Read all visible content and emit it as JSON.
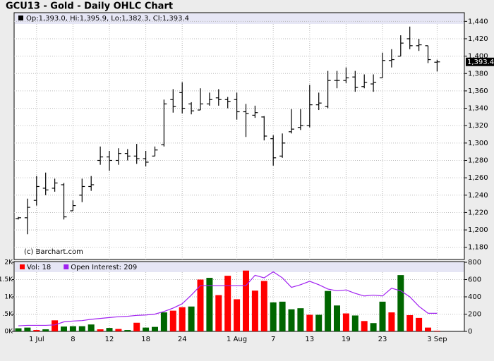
{
  "chart_data": [
    {
      "type": "ohlc",
      "title": "GCU13 - Gold - Daily OHLC Chart",
      "info": "Op:1,393.0, Hi:1,395.9, Lo:1,382.3, Cl:1,393.4",
      "credit": "(c) Barchart.com",
      "categories": [
        null,
        null,
        "1 Jul",
        null,
        null,
        null,
        "8",
        null,
        null,
        null,
        "12",
        null,
        null,
        null,
        "18",
        null,
        null,
        null,
        "24",
        null,
        null,
        null,
        null,
        null,
        "1 Aug",
        null,
        null,
        null,
        "7",
        null,
        null,
        null,
        "13",
        null,
        null,
        null,
        "19",
        null,
        null,
        null,
        "23",
        null,
        null,
        null,
        null,
        null,
        "3 Sep"
      ],
      "open": [
        1213,
        1214,
        1234,
        1248,
        1248,
        1252,
        1222,
        1240,
        1250,
        1280,
        1284,
        1280,
        1288,
        1285,
        1282,
        1285,
        1298,
        1350,
        1358,
        1345,
        1338,
        1345,
        1352,
        1350,
        1350,
        1336,
        1332,
        1330,
        1305,
        1285,
        1313,
        1318,
        1320,
        1344,
        1342,
        1372,
        1372,
        1376,
        1365,
        1368,
        1375,
        1395,
        1400,
        1420,
        1412,
        1412,
        1393.0
      ],
      "high": [
        1215,
        1236,
        1262,
        1266,
        1259,
        1254,
        1234,
        1259,
        1262,
        1296,
        1291,
        1294,
        1293,
        1299,
        1291,
        1296,
        1350,
        1362,
        1370,
        1347,
        1363,
        1358,
        1362,
        1353,
        1358,
        1345,
        1343,
        1331,
        1309,
        1311,
        1339,
        1339,
        1367,
        1358,
        1383,
        1383,
        1387,
        1383,
        1379,
        1379,
        1404,
        1408,
        1424,
        1434,
        1420,
        1412,
        1395.9
      ],
      "low": [
        1212,
        1195,
        1228,
        1240,
        1244,
        1212,
        1222,
        1232,
        1245,
        1275,
        1268,
        1275,
        1280,
        1276,
        1273,
        1285,
        1296,
        1335,
        1334,
        1333,
        1338,
        1343,
        1343,
        1340,
        1327,
        1307,
        1329,
        1303,
        1274,
        1283,
        1311,
        1315,
        1318,
        1338,
        1340,
        1363,
        1369,
        1359,
        1363,
        1359,
        1375,
        1387,
        1400,
        1408,
        1406,
        1392,
        1382.3
      ],
      "close": [
        1214,
        1226,
        1250,
        1246,
        1254,
        1215,
        1228,
        1250,
        1252,
        1284,
        1280,
        1288,
        1285,
        1282,
        1278,
        1292,
        1345,
        1342,
        1340,
        1337,
        1345,
        1350,
        1350,
        1348,
        1336,
        1334,
        1335,
        1308,
        1283,
        1300,
        1316,
        1320,
        1344,
        1346,
        1372,
        1372,
        1375,
        1364,
        1370,
        1370,
        1395,
        1396,
        1415,
        1412,
        1413,
        1396,
        1393.4
      ],
      "color": "#000000",
      "ylim": [
        1166,
        1450
      ],
      "yticks": [
        {
          "value": 1180,
          "label": "1,180"
        },
        {
          "value": 1200,
          "label": "1,200"
        },
        {
          "value": 1220,
          "label": "1,220"
        },
        {
          "value": 1240,
          "label": "1,240"
        },
        {
          "value": 1260,
          "label": "1,260"
        },
        {
          "value": 1280,
          "label": "1,280"
        },
        {
          "value": 1300,
          "label": "1,300"
        },
        {
          "value": 1320,
          "label": "1,320"
        },
        {
          "value": 1340,
          "label": "1,340"
        },
        {
          "value": 1360,
          "label": "1,360"
        },
        {
          "value": 1380,
          "label": "1,380"
        },
        {
          "value": 1400,
          "label": "1,400"
        },
        {
          "value": 1420,
          "label": "1,420"
        },
        {
          "value": 1440,
          "label": "1,440"
        }
      ],
      "last_price": {
        "value": 1393.4,
        "label": "1,393.4"
      },
      "grid": true
    },
    {
      "type": "bar",
      "series": [
        {
          "name": "Vol: 18",
          "color": "#ff0000",
          "values": [
            90,
            110,
            40,
            60,
            320,
            140,
            150,
            150,
            200,
            60,
            100,
            70,
            40,
            250,
            110,
            130,
            550,
            600,
            700,
            720,
            1500,
            1550,
            1050,
            1610,
            930,
            1760,
            1180,
            1460,
            840,
            860,
            640,
            670,
            480,
            480,
            1170,
            750,
            520,
            460,
            300,
            240,
            860,
            550,
            1630,
            470,
            390,
            110,
            18
          ],
          "bar_colors": [
            "#006600",
            "#006600",
            "#ff0000",
            "#006600",
            "#ff0000",
            "#006600",
            "#006600",
            "#006600",
            "#006600",
            "#ff0000",
            "#006600",
            "#ff0000",
            "#006600",
            "#ff0000",
            "#006600",
            "#006600",
            "#006600",
            "#ff0000",
            "#ff0000",
            "#006600",
            "#ff0000",
            "#006600",
            "#ff0000",
            "#ff0000",
            "#ff0000",
            "#ff0000",
            "#ff0000",
            "#ff0000",
            "#006600",
            "#006600",
            "#006600",
            "#006600",
            "#ff0000",
            "#006600",
            "#006600",
            "#006600",
            "#ff0000",
            "#006600",
            "#ff0000",
            "#006600",
            "#006600",
            "#ff0000",
            "#006600",
            "#ff0000",
            "#ff0000",
            "#ff0000",
            "#ff0000"
          ]
        },
        {
          "name": "Open Interest: 209",
          "color": "#a020f0",
          "axis": "y2",
          "values": [
            65,
            70,
            70,
            70,
            75,
            110,
            120,
            125,
            140,
            150,
            160,
            170,
            175,
            185,
            190,
            200,
            230,
            270,
            320,
            420,
            530,
            530,
            530,
            530,
            530,
            530,
            650,
            620,
            690,
            620,
            510,
            540,
            580,
            540,
            490,
            470,
            480,
            440,
            410,
            420,
            410,
            500,
            470,
            400,
            290,
            210,
            209
          ]
        }
      ],
      "ylim": [
        0,
        2000
      ],
      "yticks": [
        {
          "value": 0,
          "label": "0K"
        },
        {
          "value": 500,
          "label": ".5K"
        },
        {
          "value": 1000,
          "label": "1K"
        },
        {
          "value": 1500,
          "label": "1.5K"
        },
        {
          "value": 2000,
          "label": "2K"
        }
      ],
      "y2lim": [
        0,
        800
      ],
      "y2ticks": [
        0,
        200,
        400,
        600,
        800
      ],
      "grid": true
    }
  ]
}
